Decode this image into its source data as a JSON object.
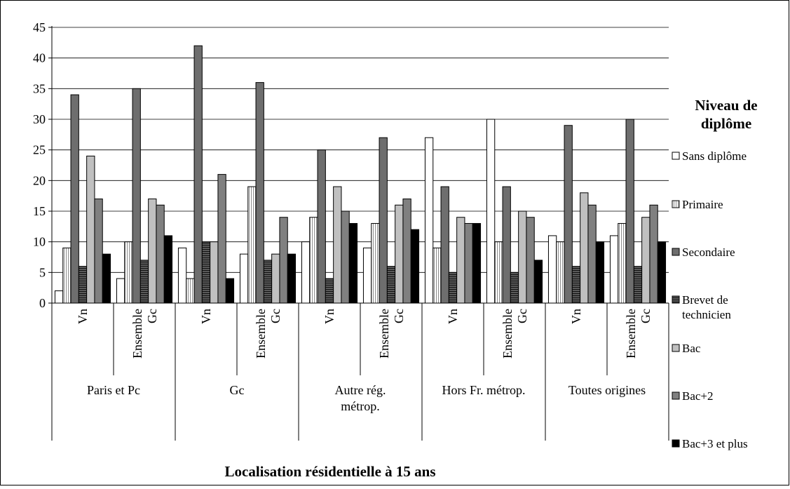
{
  "chart_data": {
    "type": "bar",
    "xlabel": "Localisation résidentielle à 15 ans",
    "ylim": [
      0,
      45
    ],
    "yticks": [
      0,
      5,
      10,
      15,
      20,
      25,
      30,
      35,
      40,
      45
    ],
    "grid": true,
    "legend_placement": "right",
    "legend_title": "Niveau de diplôme",
    "groups": [
      {
        "label": "Paris et Pc",
        "subcategories": [
          "Vn",
          "Ensemble Gc"
        ]
      },
      {
        "label": "Gc",
        "subcategories": [
          "Vn",
          "Ensemble Gc"
        ]
      },
      {
        "label": "Autre rég. métrop.",
        "subcategories": [
          "Vn",
          "Ensemble Gc"
        ]
      },
      {
        "label": "Hors Fr. métrop.",
        "subcategories": [
          "Vn",
          "Ensemble Gc"
        ]
      },
      {
        "label": "Toutes origines",
        "subcategories": [
          "Vn",
          "Ensemble Gc"
        ]
      }
    ],
    "series": [
      {
        "name": "Sans diplôme",
        "values": [
          2,
          4,
          9,
          8,
          10,
          9,
          27,
          30,
          11,
          11
        ]
      },
      {
        "name": "Primaire",
        "values": [
          9,
          10,
          4,
          19,
          14,
          13,
          9,
          10,
          10,
          13
        ]
      },
      {
        "name": "Secondaire",
        "values": [
          34,
          35,
          42,
          36,
          25,
          27,
          19,
          19,
          29,
          30
        ]
      },
      {
        "name": "Brevet de technicien",
        "values": [
          6,
          7,
          10,
          7,
          4,
          6,
          5,
          5,
          6,
          6
        ]
      },
      {
        "name": "Bac",
        "values": [
          24,
          17,
          10,
          8,
          19,
          16,
          14,
          15,
          18,
          14
        ]
      },
      {
        "name": "Bac+2",
        "values": [
          17,
          16,
          21,
          14,
          15,
          17,
          13,
          14,
          16,
          16
        ]
      },
      {
        "name": "Bac+3 et plus",
        "values": [
          8,
          11,
          4,
          8,
          13,
          12,
          13,
          7,
          10,
          10
        ]
      }
    ]
  }
}
